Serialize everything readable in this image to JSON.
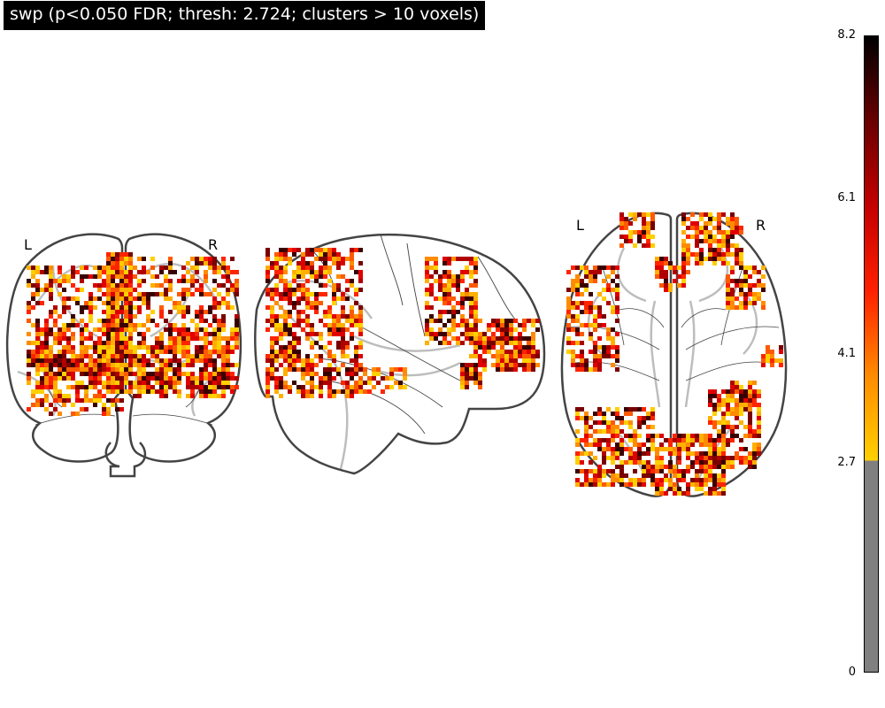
{
  "title": "swp (p<0.050 FDR; thresh: 2.724; clusters > 10 voxels)",
  "views": {
    "coronal": {
      "left_label": "L",
      "right_label": "R"
    },
    "sagittal": {},
    "axial": {
      "left_label": "L",
      "right_label": "R"
    }
  },
  "colorbar": {
    "ticks": [
      "8.2",
      "6.1",
      "4.1",
      "2.7",
      "0"
    ],
    "min": 0,
    "max": 8.2,
    "threshold": 2.724,
    "below_threshold_color": "#808080",
    "colormap": [
      "#ffd000",
      "#ff8c00",
      "#ff2000",
      "#c40000",
      "#6a0000",
      "#000000"
    ]
  },
  "colors": {
    "outline": "#444444",
    "sulci": "#bdbdbd",
    "blob_palette": [
      "#ffd000",
      "#ffb000",
      "#ff8c00",
      "#ff5a00",
      "#ff2400",
      "#e00000",
      "#b00000",
      "#7a0000",
      "#3a0000"
    ]
  }
}
